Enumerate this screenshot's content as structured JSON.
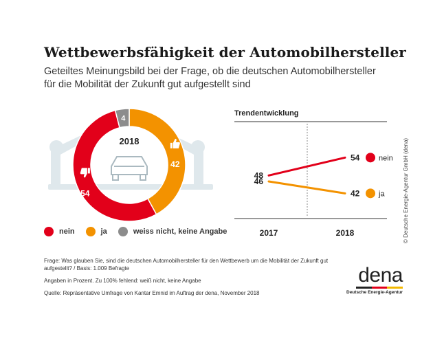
{
  "header": {
    "title": "Wettbewerbsfähigkeit der Automobilhersteller",
    "subtitle_lines": [
      "Geteiltes Meinungsbild bei der Frage, ob die deutschen Automobilhersteller",
      "für die Mobilität der Zukunft gut aufgestellt sind"
    ]
  },
  "legend": {
    "items": [
      {
        "label": "nein",
        "color": "#e2001a"
      },
      {
        "label": "ja",
        "color": "#f39200"
      },
      {
        "label": "weiss nicht, keine Angabe",
        "color": "#8c8c8c"
      }
    ]
  },
  "chart_data": [
    {
      "type": "pie",
      "title": "",
      "center_label": "2018",
      "categories": [
        "nein",
        "ja",
        "weiss nicht, keine Angabe"
      ],
      "values": [
        54,
        42,
        4
      ],
      "value_labels": [
        "54",
        "42",
        "4"
      ],
      "colors": [
        "#e2001a",
        "#f39200",
        "#8c8c8c"
      ],
      "icons": {
        "nein": "thumbs-down-icon",
        "ja": "thumbs-up-icon"
      },
      "background_illustration": "car-factory-robot-illustration"
    },
    {
      "type": "line",
      "title": "Trendentwicklung",
      "x": [
        "2017",
        "2018"
      ],
      "series": [
        {
          "name": "nein",
          "values": [
            48,
            54
          ],
          "color": "#e2001a"
        },
        {
          "name": "ja",
          "values": [
            46,
            42
          ],
          "color": "#f39200"
        }
      ],
      "legend": "right",
      "grid": false
    }
  ],
  "credit": "© Deutsche Energie-Agentur GmbH (dena)",
  "footer": {
    "question": "Frage: Was glauben Sie, sind die deutschen Automobilhersteller für den Wettbewerb um die Mobilität der Zukunft gut aufgestellt? / Basis: 1.009 Befragte",
    "note": "Angaben in Prozent. Zu 100% fehlend: weiß nicht, keine Angabe",
    "source": "Quelle: Repräsentative Umfrage von Kantar Emnid im Auftrag der dena, November 2018"
  },
  "logo": {
    "word": "dena",
    "subtitle": "Deutsche Energie-Agentur",
    "bar_colors": [
      "#222222",
      "#e2001a",
      "#f3b800"
    ]
  }
}
